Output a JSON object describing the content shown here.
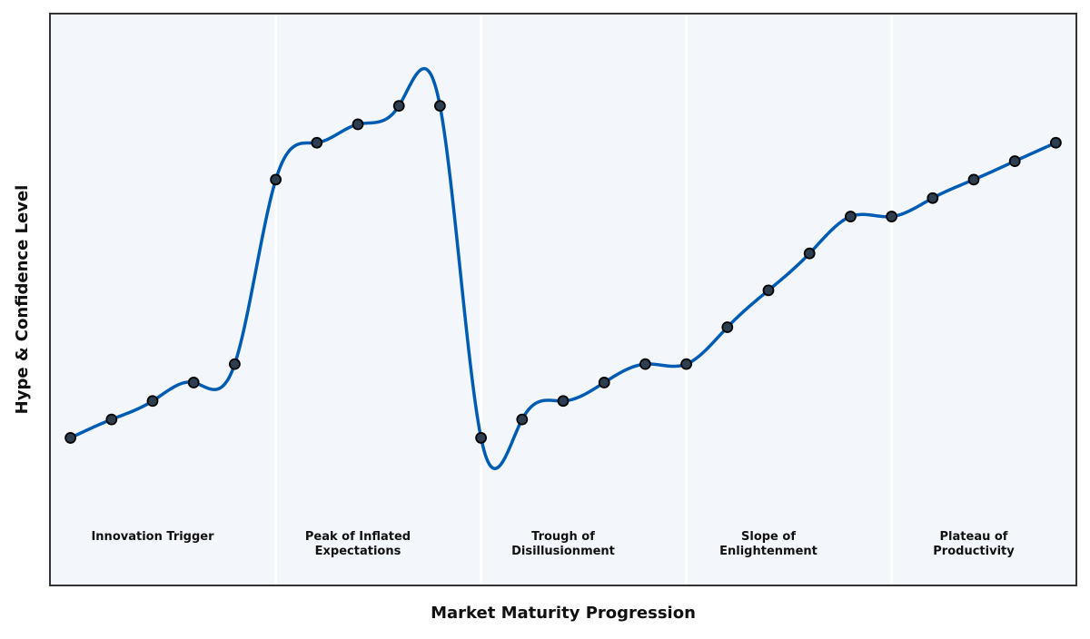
{
  "chart_data": {
    "type": "line",
    "title": "",
    "xlabel": "Market Maturity Progression",
    "ylabel": "Hype & Confidence Level",
    "x": [
      0,
      1,
      2,
      3,
      4,
      5,
      6,
      7,
      8,
      9,
      10,
      11,
      12,
      13,
      14,
      15,
      16,
      17,
      18,
      19,
      20,
      21,
      22,
      23,
      24
    ],
    "values": [
      20,
      25,
      30,
      35,
      40,
      90,
      100,
      105,
      110,
      110,
      20,
      25,
      30,
      35,
      40,
      40,
      50,
      60,
      70,
      80,
      80,
      85,
      90,
      95,
      100
    ],
    "xlim": [
      -0.5,
      24.5
    ],
    "ylim": [
      -20,
      135
    ],
    "grid": false,
    "smoothing": "cubic spline",
    "phases": [
      {
        "label_lines": [
          "Innovation Trigger"
        ],
        "center": 2
      },
      {
        "label_lines": [
          "Peak of Inflated",
          "Expectations"
        ],
        "center": 7
      },
      {
        "label_lines": [
          "Trough of",
          "Disillusionment"
        ],
        "center": 12
      },
      {
        "label_lines": [
          "Slope of",
          "Enlightenment"
        ],
        "center": 17
      },
      {
        "label_lines": [
          "Plateau of",
          "Productivity"
        ],
        "center": 22
      }
    ],
    "phase_boundaries": [
      5,
      10,
      15,
      20
    ],
    "colors": {
      "line": "#005bb5",
      "marker": "#2c3e50",
      "marker_edge": "#000000",
      "background": "#f3f6fa",
      "divider": "#ffffff"
    }
  }
}
